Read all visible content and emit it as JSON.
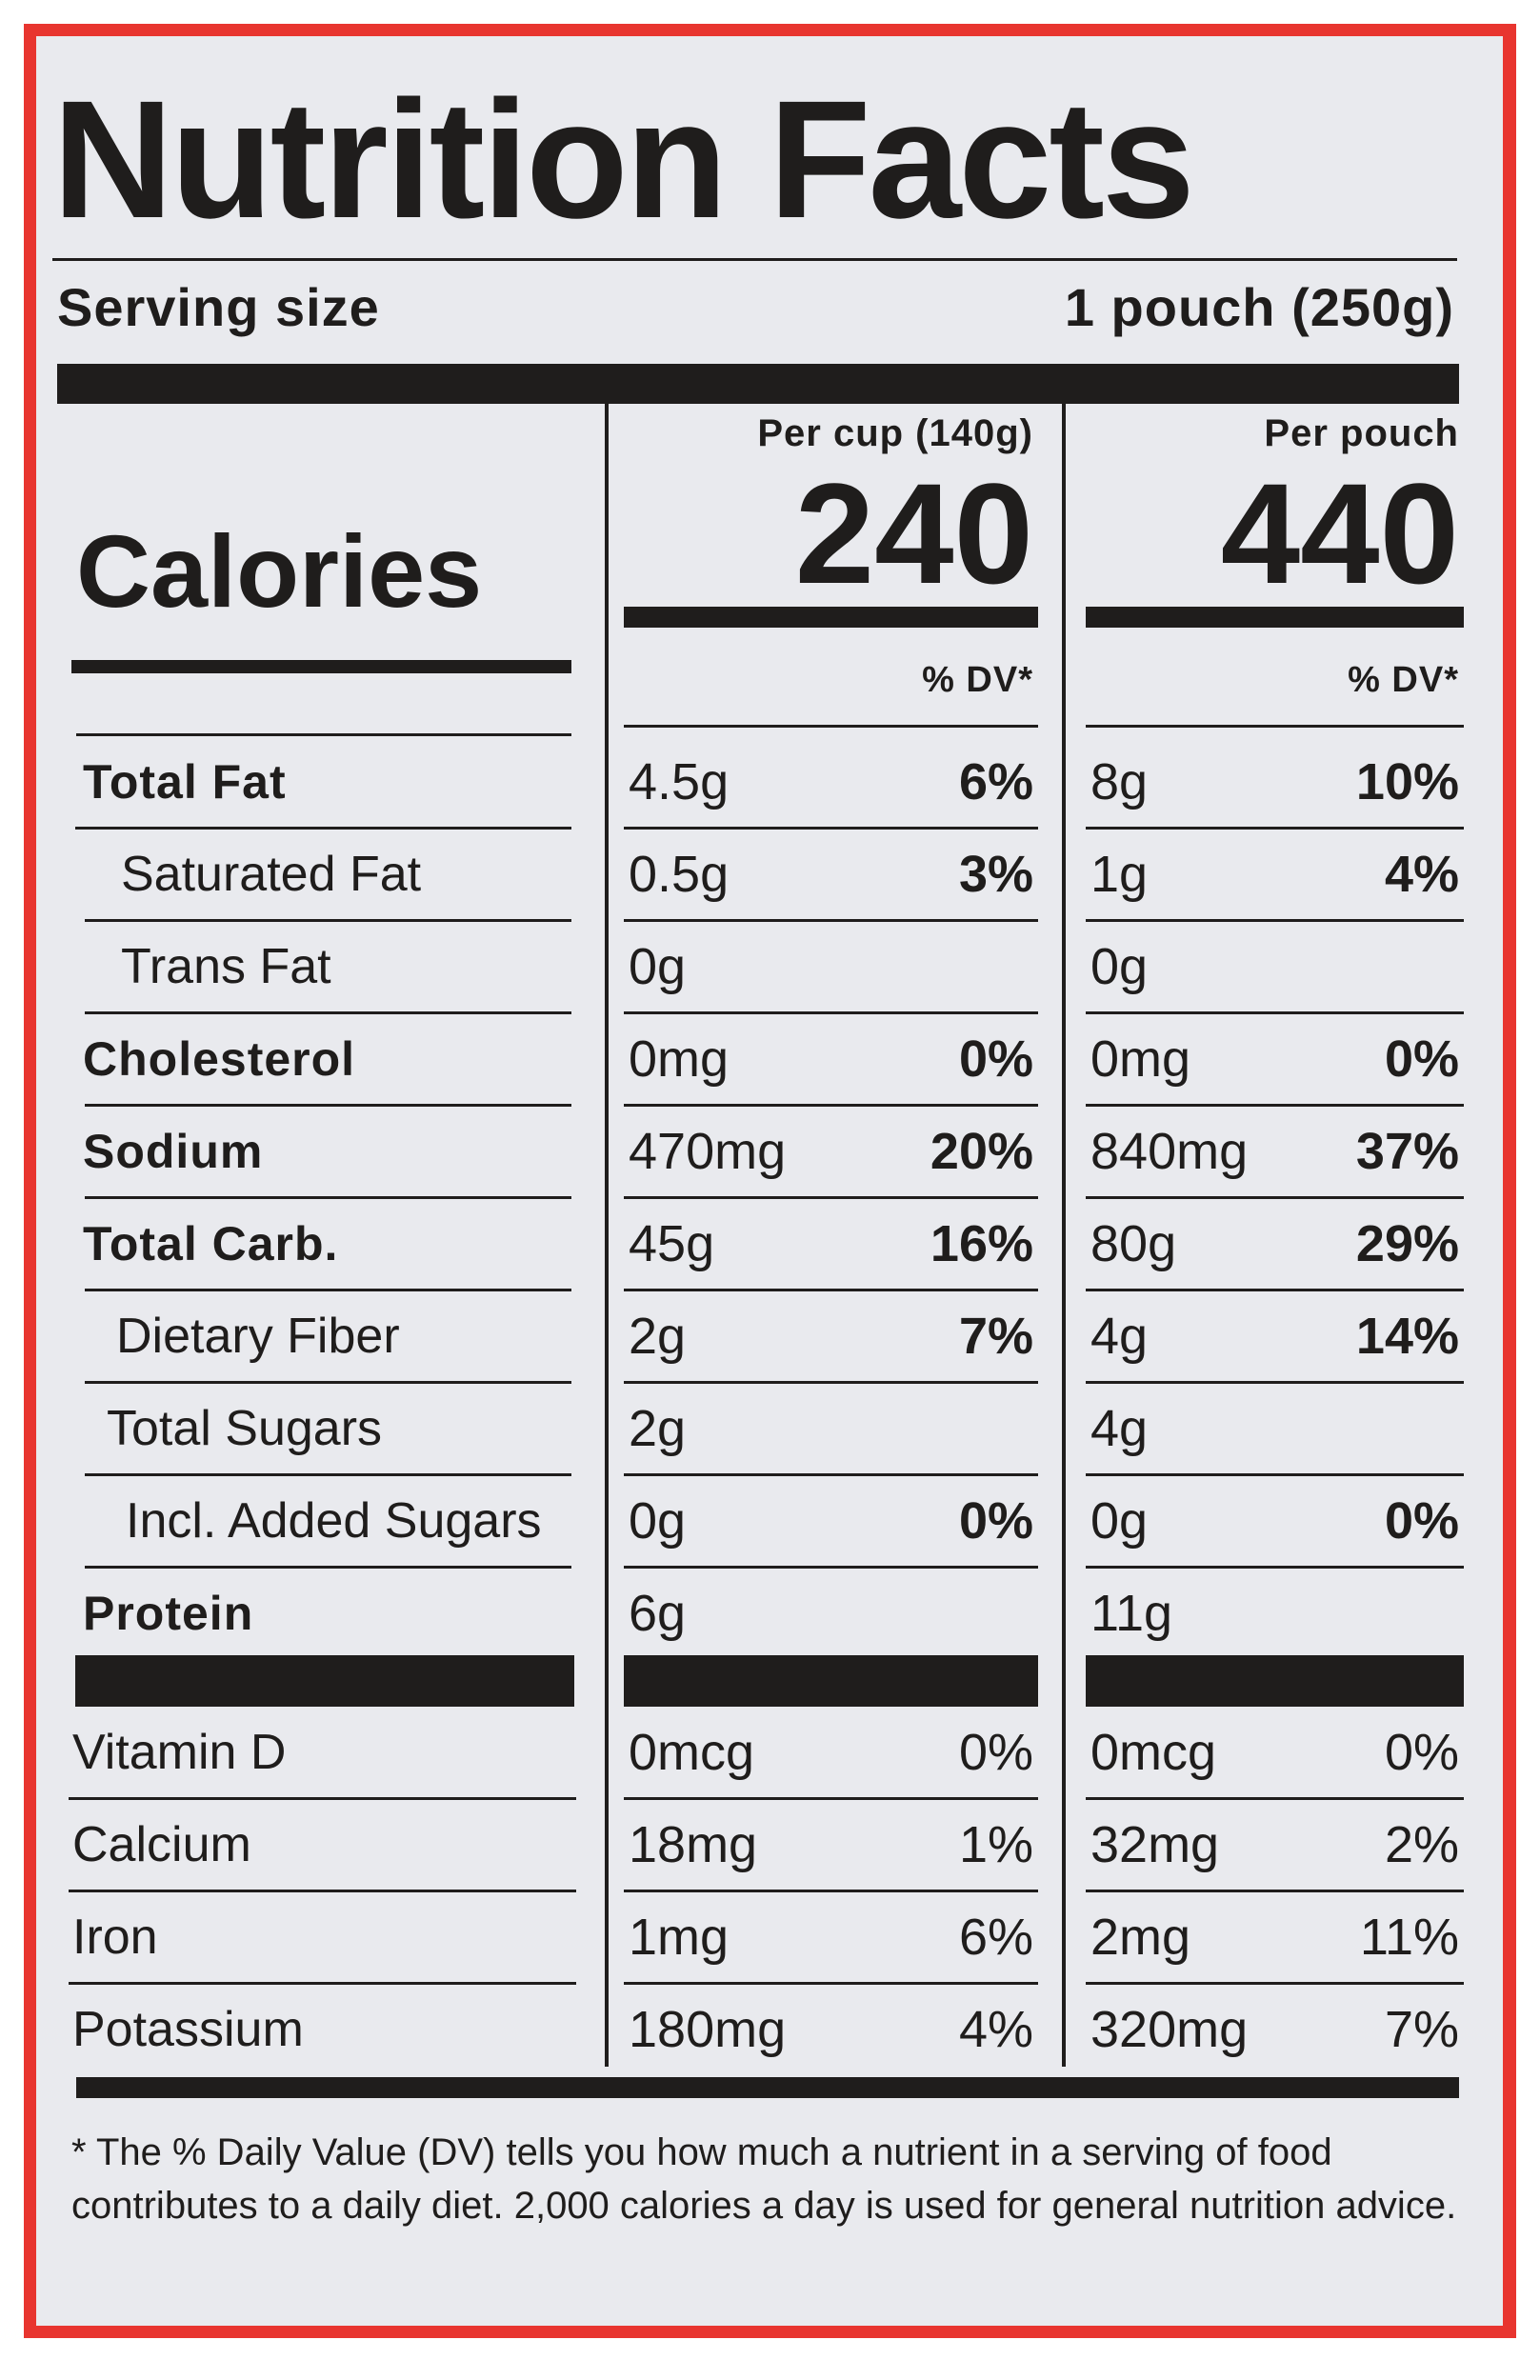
{
  "header": {
    "title": "Nutrition Facts",
    "serving_size_label": "Serving size",
    "serving_size_value": "1 pouch (250g)"
  },
  "calories_label": "Calories",
  "columns": [
    {
      "heading": "Per cup (140g)",
      "calories": "240",
      "dv_heading": "% DV*"
    },
    {
      "heading": "Per pouch",
      "calories": "440",
      "dv_heading": "% DV*"
    }
  ],
  "nutrients": [
    {
      "name": "Total Fat",
      "cells": [
        [
          "4.5g",
          "6%"
        ],
        [
          "8g",
          "10%"
        ]
      ]
    },
    {
      "name": "Saturated Fat",
      "cells": [
        [
          "0.5g",
          "3%"
        ],
        [
          "1g",
          "4%"
        ]
      ]
    },
    {
      "name": "Trans Fat",
      "cells": [
        [
          "0g",
          null
        ],
        [
          "0g",
          null
        ]
      ]
    },
    {
      "name": "Cholesterol",
      "cells": [
        [
          "0mg",
          "0%"
        ],
        [
          "0mg",
          "0%"
        ]
      ]
    },
    {
      "name": "Sodium",
      "cells": [
        [
          "470mg",
          "20%"
        ],
        [
          "840mg",
          "37%"
        ]
      ]
    },
    {
      "name": "Total Carb.",
      "cells": [
        [
          "45g",
          "16%"
        ],
        [
          "80g",
          "29%"
        ]
      ]
    },
    {
      "name": "Dietary Fiber",
      "cells": [
        [
          "2g",
          "7%"
        ],
        [
          "4g",
          "14%"
        ]
      ]
    },
    {
      "name": "Total Sugars",
      "cells": [
        [
          "2g",
          null
        ],
        [
          "4g",
          null
        ]
      ]
    },
    {
      "name": "Incl. Added Sugars",
      "cells": [
        [
          "0g",
          "0%"
        ],
        [
          "0g",
          "0%"
        ]
      ]
    },
    {
      "name": "Protein",
      "cells": [
        [
          "6g",
          null
        ],
        [
          "11g",
          null
        ]
      ]
    }
  ],
  "vitamins": [
    {
      "name": "Vitamin D",
      "cells": [
        [
          "0mcg",
          "0%"
        ],
        [
          "0mcg",
          "0%"
        ]
      ]
    },
    {
      "name": "Calcium",
      "cells": [
        [
          "18mg",
          "1%"
        ],
        [
          "32mg",
          "2%"
        ]
      ]
    },
    {
      "name": "Iron",
      "cells": [
        [
          "1mg",
          "6%"
        ],
        [
          "2mg",
          "11%"
        ]
      ]
    },
    {
      "name": "Potassium",
      "cells": [
        [
          "180mg",
          "4%"
        ],
        [
          "320mg",
          "7%"
        ]
      ]
    }
  ],
  "footnote": "* The % Daily Value (DV) tells you how much a nutrient in a serving of food contributes to a daily diet. 2,000 calories a day is used for general nutrition advice."
}
